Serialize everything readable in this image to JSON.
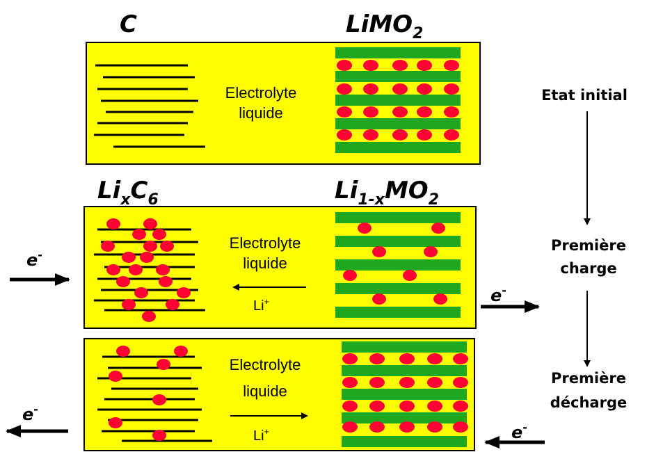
{
  "panel1": {
    "anode_label": "C",
    "cathode_label": "LiMO",
    "cathode_sub": "2",
    "electrolyte_line1": "Electrolyte",
    "electrolyte_line2": "liquide"
  },
  "panel2": {
    "anode_label_a": "Li",
    "anode_label_x": "x",
    "anode_label_c": "C",
    "anode_label_6": "6",
    "cathode_label_a": "Li",
    "cathode_label_sub": "1-x",
    "cathode_label_b": "MO",
    "cathode_label_2": "2",
    "electrolyte_line1": "Electrolyte",
    "electrolyte_line2": "liquide",
    "ion_label": "Li",
    "ion_sup": "+"
  },
  "panel3": {
    "electrolyte_line1": "Electrolyte",
    "electrolyte_line2": "liquide",
    "ion_label": "Li",
    "ion_sup": "+"
  },
  "electron": {
    "symbol": "e",
    "sup": "-"
  },
  "states": {
    "initial": "Etat initial",
    "charge_line1": "Première",
    "charge_line2": "charge",
    "discharge_line1": "Première",
    "discharge_line2": "décharge"
  },
  "colors": {
    "cell_fill": "#ffff00",
    "layer_green": "#1fa81f",
    "lithium_red": "#ff0033"
  }
}
